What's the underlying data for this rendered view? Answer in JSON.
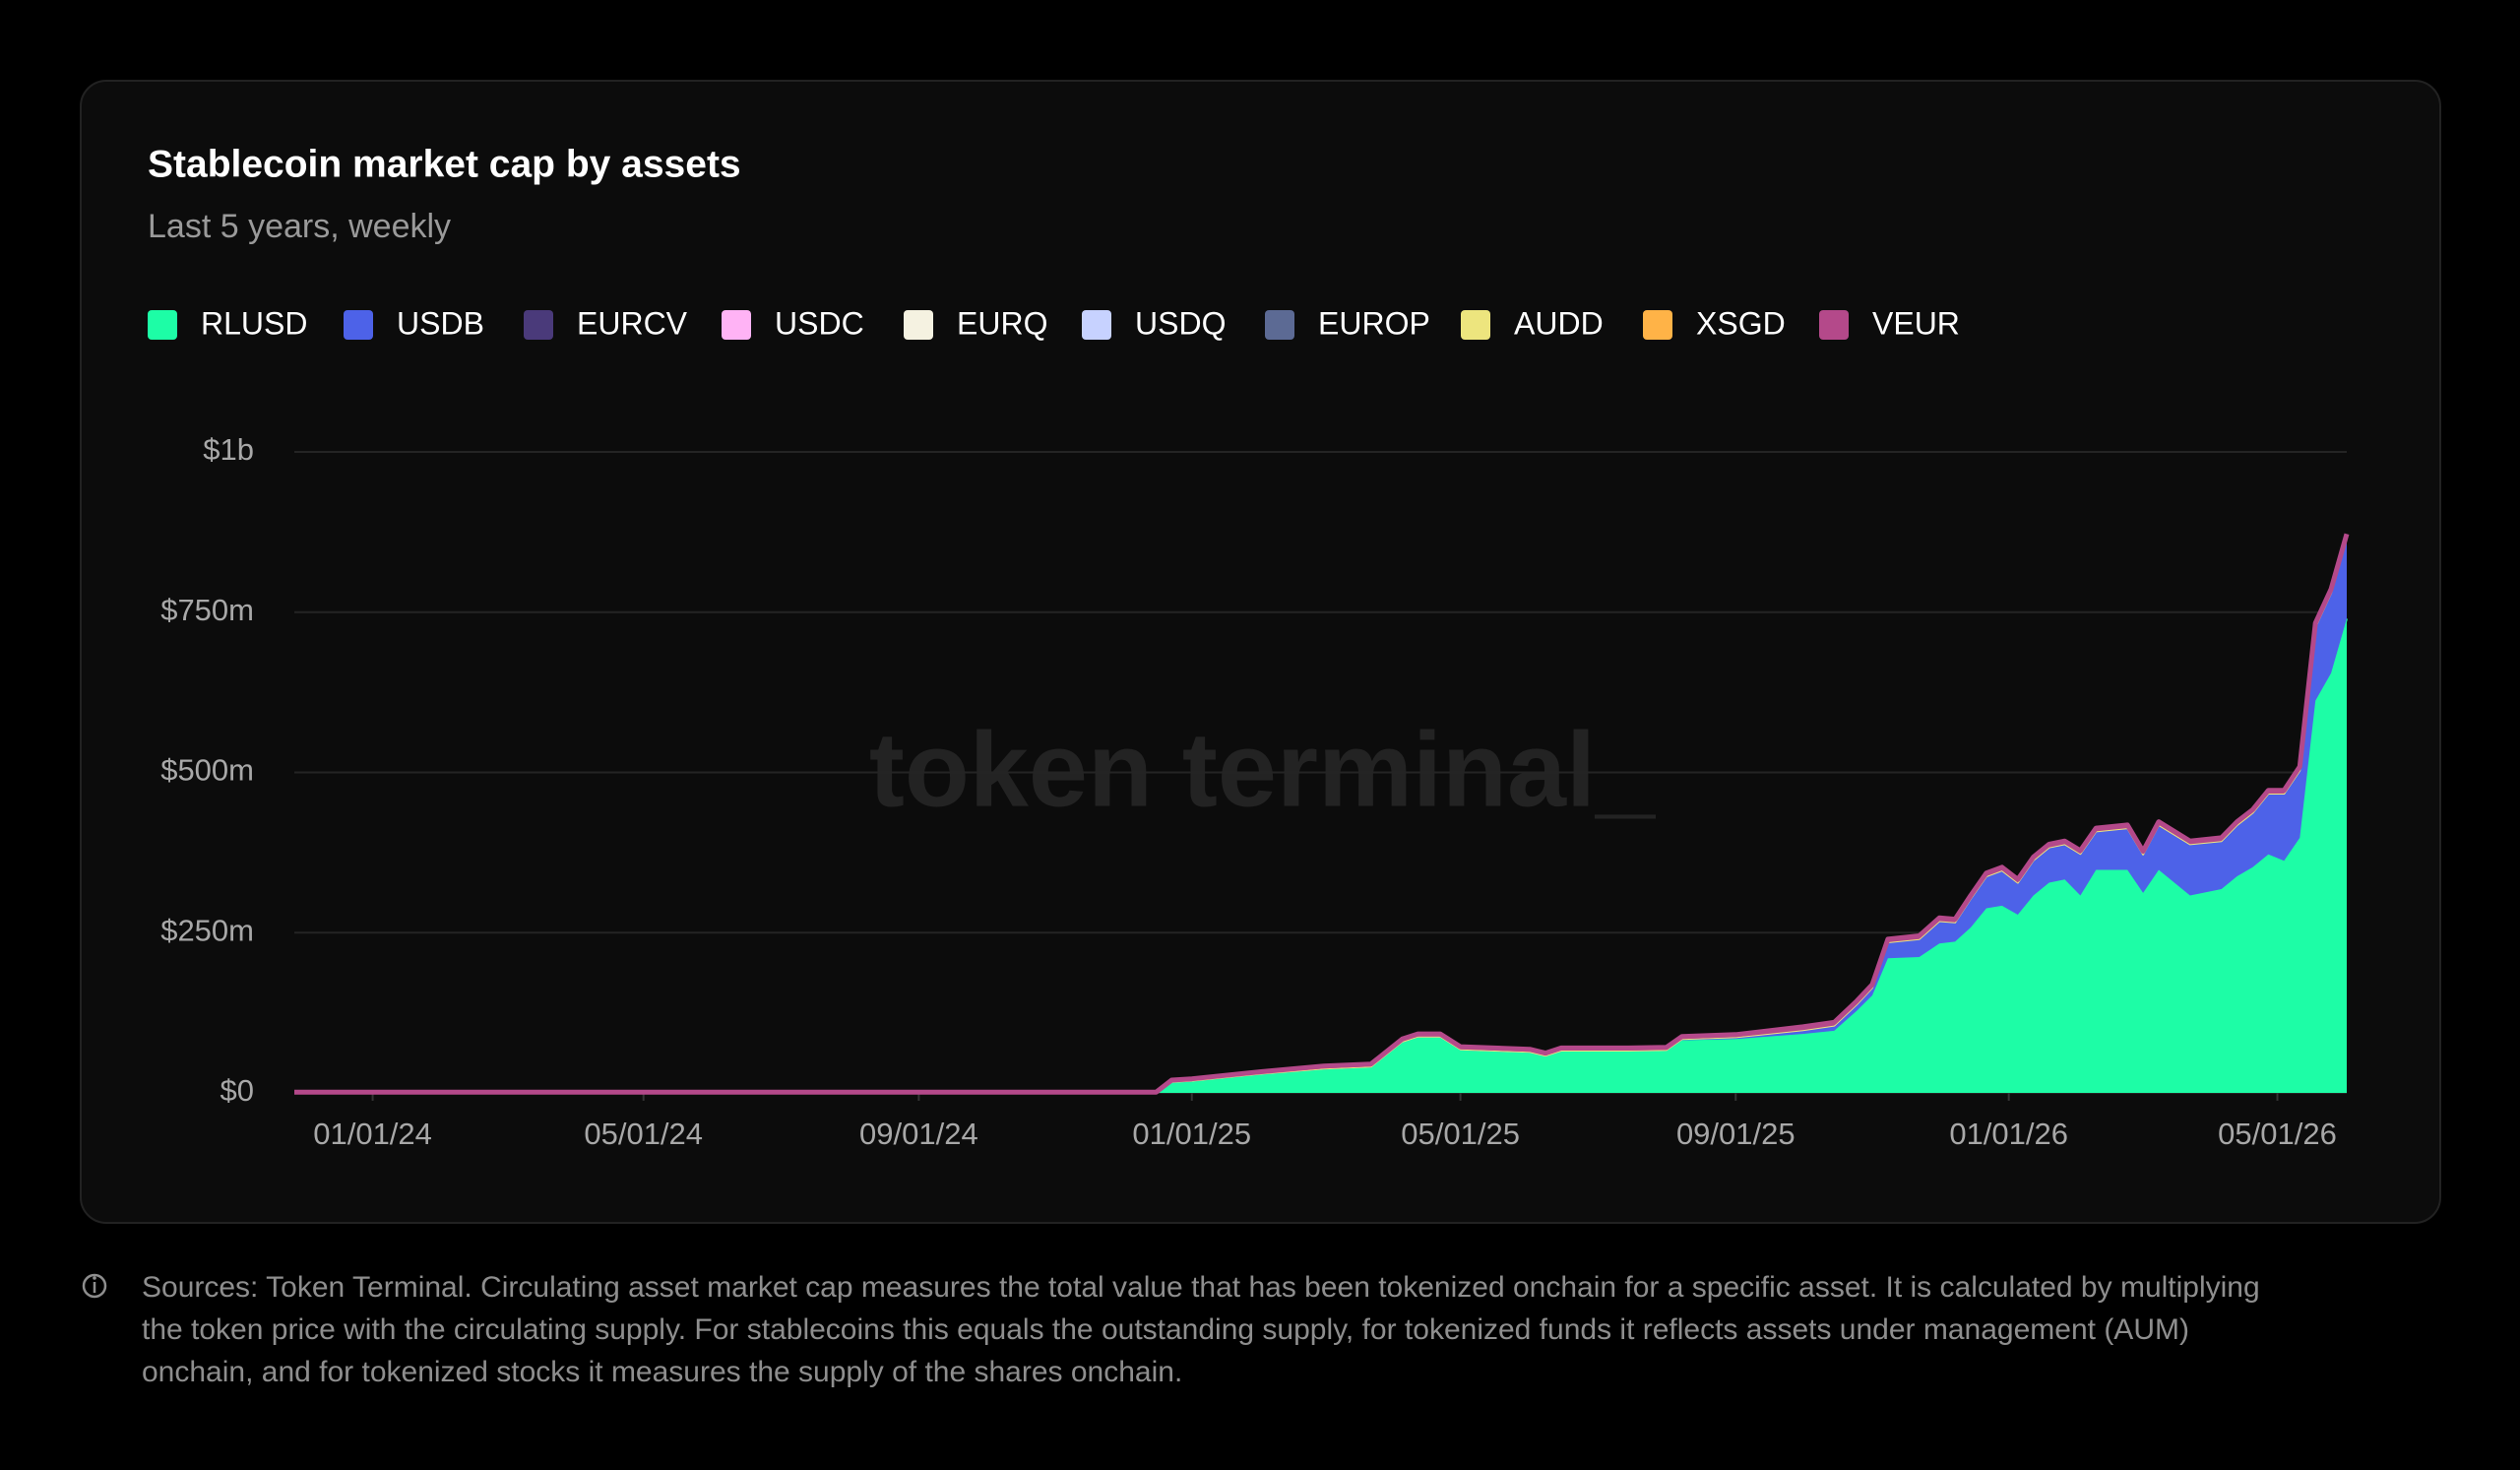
{
  "chart_data": {
    "type": "stacked-area",
    "title": "Stablecoin market cap by assets",
    "subtitle": "Last 5 years, weekly",
    "watermark": "token terminal_",
    "footnote": "Sources: Token Terminal. Circulating asset market cap measures the total value that has been tokenized onchain for a specific asset. It is calculated by multiplying the token price with the circulating supply. For stablecoins this equals the outstanding supply, for tokenized funds it reflects assets under management (AUM) onchain, and for tokenized stocks it measures the supply of the shares onchain.",
    "x": [
      "11/27/23",
      "01/01/24",
      "05/01/24",
      "08/05/24",
      "08/12/24",
      "12/16/24",
      "12/23/24",
      "01/01/25",
      "02/01/25",
      "03/01/25",
      "03/22/25",
      "04/05/25",
      "04/12/25",
      "04/22/25",
      "05/01/25",
      "06/01/25",
      "06/08/25",
      "06/15/25",
      "07/15/25",
      "08/01/25",
      "08/08/25",
      "09/01/25",
      "10/01/25",
      "10/15/25",
      "10/25/25",
      "11/01/25",
      "11/08/25",
      "11/22/25",
      "12/01/25",
      "12/08/25",
      "12/15/25",
      "12/22/25",
      "12/29/25",
      "01/05/26",
      "01/12/26",
      "01/19/26",
      "01/26/26",
      "02/02/26",
      "02/09/26",
      "02/23/26",
      "03/02/26",
      "03/09/26",
      "03/23/26",
      "04/06/26",
      "04/13/26",
      "04/20/26",
      "04/27/26",
      "05/04/26",
      "05/11/26",
      "05/18/26",
      "05/25/26",
      "06/01/26"
    ],
    "xlim": [
      "11/27/23",
      "06/01/26"
    ],
    "xticks": [
      "01/01/24",
      "05/01/24",
      "09/01/24",
      "01/01/25",
      "05/01/25",
      "09/01/25",
      "01/01/26",
      "05/01/26"
    ],
    "ylim": [
      0,
      1000000000.0
    ],
    "yticks": [
      {
        "value": 0,
        "label": "$0"
      },
      {
        "value": 250000000.0,
        "label": "$250m"
      },
      {
        "value": 500000000.0,
        "label": "$500m"
      },
      {
        "value": 750000000.0,
        "label": "$750m"
      },
      {
        "value": 1000000000.0,
        "label": "$1b"
      }
    ],
    "grid": true,
    "series": [
      {
        "name": "RLUSD",
        "color": "#1dfda6",
        "values": [
          0,
          0,
          0,
          0,
          0,
          0,
          17000000.0,
          19000000.0,
          30000000.0,
          38000000.0,
          41000000.0,
          80000000.0,
          88000000.0,
          88000000.0,
          68000000.0,
          64000000.0,
          58000000.0,
          66000000.0,
          66000000.0,
          67000000.0,
          82000000.0,
          84000000.0,
          92000000.0,
          97000000.0,
          128000000.0,
          152000000.0,
          210000000.0,
          212000000.0,
          233000000.0,
          236000000.0,
          258000000.0,
          288000000.0,
          292000000.0,
          278000000.0,
          308000000.0,
          328000000.0,
          333000000.0,
          308000000.0,
          348000000.0,
          348000000.0,
          312000000.0,
          348000000.0,
          308000000.0,
          318000000.0,
          338000000.0,
          352000000.0,
          372000000.0,
          362000000.0,
          398000000.0,
          612000000.0,
          655000000.0,
          740000000.0
        ]
      },
      {
        "name": "USDB",
        "color": "#4d62e8",
        "values": [
          0,
          0,
          0,
          0,
          0,
          0,
          0,
          0,
          0,
          0,
          0,
          0,
          0,
          0,
          0,
          0,
          0,
          0,
          0,
          0,
          2000000.0,
          3000000.0,
          6000000.0,
          8000000.0,
          10000000.0,
          12000000.0,
          25000000.0,
          28000000.0,
          35000000.0,
          30000000.0,
          45000000.0,
          50000000.0,
          55000000.0,
          50000000.0,
          55000000.0,
          55000000.0,
          55000000.0,
          65000000.0,
          60000000.0,
          65000000.0,
          60000000.0,
          70000000.0,
          80000000.0,
          75000000.0,
          80000000.0,
          85000000.0,
          95000000.0,
          105000000.0,
          105000000.0,
          115000000.0,
          125000000.0,
          125000000.0
        ]
      },
      {
        "name": "EURCV",
        "color": "#4a3a7a",
        "values": [
          0,
          0,
          0,
          0,
          0,
          0,
          0,
          0,
          0,
          0,
          0,
          0,
          0,
          0,
          0,
          0,
          0,
          0,
          0,
          0,
          0,
          0,
          0,
          0,
          0,
          0,
          0,
          0,
          0,
          0,
          0,
          0,
          0,
          0,
          0,
          0,
          0,
          0,
          0,
          0,
          0,
          0,
          0,
          0,
          0,
          0,
          0,
          0,
          0,
          0,
          0,
          0
        ]
      },
      {
        "name": "USDC",
        "color": "#ffb3f5",
        "values": [
          0,
          0,
          0,
          0,
          0,
          0,
          0,
          0,
          0,
          0,
          0,
          0,
          0,
          0,
          0,
          0,
          0,
          0,
          0,
          0,
          0,
          0,
          0,
          0,
          0,
          0,
          0,
          0,
          0,
          0,
          0,
          0,
          0,
          0,
          0,
          0,
          0,
          0,
          0,
          0,
          0,
          0,
          0,
          0,
          0,
          0,
          0,
          0,
          0,
          0,
          0,
          0
        ]
      },
      {
        "name": "EURQ",
        "color": "#f5f2e1",
        "values": [
          0,
          0,
          0,
          0,
          0,
          0,
          0,
          0,
          0,
          0,
          0,
          0,
          0,
          0,
          0,
          0,
          0,
          0,
          0,
          0,
          0,
          0,
          0,
          0,
          0,
          0,
          0,
          0,
          0,
          0,
          0,
          0,
          0,
          0,
          0,
          0,
          0,
          0,
          0,
          0,
          0,
          0,
          0,
          0,
          0,
          0,
          0,
          0,
          0,
          0,
          0,
          0
        ]
      },
      {
        "name": "USDQ",
        "color": "#c7d2ff",
        "values": [
          0,
          0,
          0,
          0,
          0,
          0,
          0,
          0,
          0,
          0,
          0,
          0,
          0,
          0,
          0,
          0,
          0,
          0,
          0,
          0,
          0,
          0,
          0,
          0,
          0,
          0,
          0,
          0,
          0,
          0,
          0,
          0,
          0,
          0,
          0,
          0,
          0,
          0,
          0,
          0,
          0,
          0,
          0,
          0,
          0,
          0,
          0,
          0,
          0,
          0,
          0,
          0
        ]
      },
      {
        "name": "EUROP",
        "color": "#5c6a94",
        "values": [
          0,
          0,
          0,
          0,
          0,
          0,
          0,
          0,
          0,
          0,
          0,
          0,
          0,
          0,
          0,
          0,
          0,
          0,
          0,
          0,
          0,
          0,
          0,
          0,
          0,
          0,
          0,
          0,
          0,
          0,
          0,
          0,
          0,
          0,
          0,
          0,
          0,
          0,
          0,
          0,
          0,
          0,
          0,
          0,
          0,
          0,
          0,
          0,
          0,
          0,
          0,
          0
        ]
      },
      {
        "name": "AUDD",
        "color": "#ede57e",
        "values": [
          1000000.0,
          1000000.0,
          1000000.0,
          1000000.0,
          0,
          0,
          0,
          0,
          0,
          0,
          0,
          0,
          0,
          0,
          0,
          0,
          0,
          0,
          0,
          0,
          0,
          0,
          0,
          0,
          0,
          0,
          0,
          0,
          0,
          0,
          0,
          0,
          0,
          0,
          0,
          0,
          0,
          0,
          0,
          0,
          0,
          0,
          0,
          0,
          0,
          0,
          0,
          0,
          0,
          0,
          0,
          0
        ]
      },
      {
        "name": "XSGD",
        "color": "#ffb347",
        "values": [
          0,
          0,
          0,
          0,
          0,
          0,
          0,
          0,
          0,
          0,
          0,
          0,
          0,
          0,
          0,
          0,
          0,
          0,
          0,
          0,
          0,
          0,
          0,
          0,
          0,
          0,
          0,
          0,
          0,
          0,
          0,
          0,
          0,
          0,
          0,
          0,
          0,
          0,
          0,
          0,
          0,
          0,
          0,
          0,
          0,
          0,
          0,
          0,
          0,
          0,
          0,
          0
        ]
      },
      {
        "name": "VEUR",
        "color": "#b4498a",
        "values": [
          0,
          0,
          0,
          0,
          1000000.0,
          1000000.0,
          3000000.0,
          3000000.0,
          3000000.0,
          4000000.0,
          4000000.0,
          4000000.0,
          4000000.0,
          4000000.0,
          4000000.0,
          4000000.0,
          4000000.0,
          4000000.0,
          4000000.0,
          4000000.0,
          4000000.0,
          4000000.0,
          5000000.0,
          5000000.0,
          5000000.0,
          5000000.0,
          5000000.0,
          5000000.0,
          5000000.0,
          5000000.0,
          5000000.0,
          5000000.0,
          5000000.0,
          5000000.0,
          5000000.0,
          5000000.0,
          5000000.0,
          5000000.0,
          5000000.0,
          5000000.0,
          5000000.0,
          5000000.0,
          5000000.0,
          5000000.0,
          5000000.0,
          5000000.0,
          5000000.0,
          5000000.0,
          6000000.0,
          6000000.0,
          6000000.0,
          7000000.0
        ]
      }
    ]
  }
}
